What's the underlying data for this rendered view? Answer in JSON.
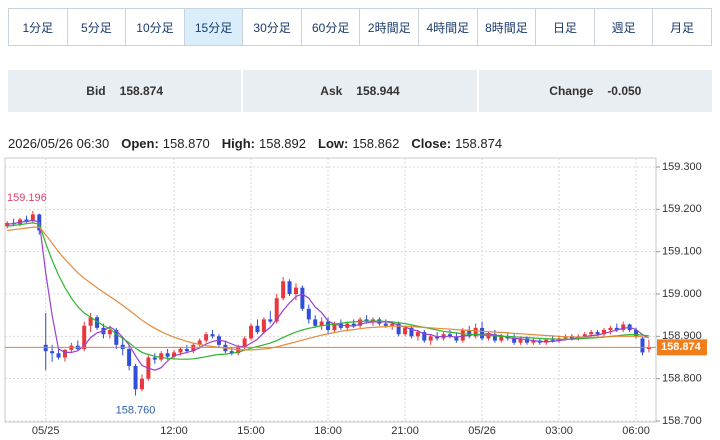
{
  "tabs": {
    "labels": [
      "1分足",
      "5分足",
      "10分足",
      "15分足",
      "30分足",
      "60分足",
      "2時間足",
      "4時間足",
      "8時間足",
      "日足",
      "週足",
      "月足"
    ],
    "selected": 3
  },
  "quote": [
    {
      "label": "Bid",
      "value": "158.874"
    },
    {
      "label": "Ask",
      "value": "158.944"
    },
    {
      "label": "Change",
      "value": "-0.050"
    }
  ],
  "info": {
    "time": "2026/05/26 06:30",
    "items": [
      {
        "label": "Open:",
        "value": "158.870"
      },
      {
        "label": "High:",
        "value": "158.892"
      },
      {
        "label": "Low:",
        "value": "158.862"
      },
      {
        "label": "Close:",
        "value": "158.874"
      }
    ]
  },
  "chart_data": {
    "type": "candlestick",
    "categories": [
      null,
      null,
      null,
      null,
      null,
      null,
      "05/25",
      null,
      null,
      null,
      null,
      null,
      null,
      null,
      null,
      null,
      null,
      null,
      null,
      null,
      null,
      null,
      null,
      null,
      null,
      null,
      "12:00",
      null,
      null,
      null,
      null,
      null,
      null,
      null,
      null,
      null,
      null,
      null,
      "15:00",
      null,
      null,
      null,
      null,
      null,
      null,
      null,
      null,
      null,
      null,
      null,
      "18:00",
      null,
      null,
      null,
      null,
      null,
      null,
      null,
      null,
      null,
      null,
      null,
      "21:00",
      null,
      null,
      null,
      null,
      null,
      null,
      null,
      null,
      null,
      null,
      null,
      "05/26",
      null,
      null,
      null,
      null,
      null,
      null,
      null,
      null,
      null,
      null,
      null,
      "03:00",
      null,
      null,
      null,
      null,
      null,
      null,
      null,
      null,
      null,
      null,
      null,
      "06:00",
      null,
      null
    ],
    "open": [
      159.16,
      159.168,
      159.165,
      159.176,
      159.172,
      159.188,
      158.88,
      158.865,
      158.86,
      158.85,
      158.868,
      158.878,
      158.87,
      158.925,
      158.945,
      158.92,
      158.905,
      158.915,
      158.88,
      158.87,
      158.83,
      158.775,
      158.8,
      158.85,
      158.845,
      158.86,
      158.852,
      158.862,
      158.87,
      158.865,
      158.88,
      158.89,
      158.905,
      158.9,
      158.88,
      158.865,
      158.86,
      158.875,
      158.895,
      158.925,
      158.91,
      158.94,
      158.935,
      158.99,
      159.03,
      159.0,
      159.015,
      158.965,
      158.94,
      158.925,
      158.935,
      158.915,
      158.93,
      158.92,
      158.93,
      158.925,
      158.94,
      158.935,
      158.94,
      158.93,
      158.925,
      158.93,
      158.905,
      158.92,
      158.9,
      158.91,
      158.89,
      158.9,
      158.895,
      158.905,
      158.9,
      158.89,
      158.915,
      158.9,
      158.92,
      158.895,
      158.905,
      158.89,
      158.9,
      158.895,
      158.885,
      158.895,
      158.885,
      158.89,
      158.885,
      158.892,
      158.89,
      158.895,
      158.9,
      158.895,
      158.9,
      158.905,
      158.91,
      158.905,
      158.915,
      158.92,
      158.915,
      158.928,
      158.915,
      158.895,
      158.87
    ],
    "high": [
      159.172,
      159.178,
      159.18,
      159.185,
      159.196,
      159.19,
      158.955,
      158.88,
      158.875,
      158.87,
      158.885,
      158.89,
      158.935,
      158.955,
      158.95,
      158.93,
      158.925,
      158.92,
      158.895,
      158.88,
      158.835,
      158.81,
      158.855,
      158.86,
      158.865,
      158.87,
      158.868,
      158.875,
      158.88,
      158.885,
      158.895,
      158.91,
      158.915,
      158.905,
      158.89,
      158.875,
      158.88,
      158.9,
      158.93,
      158.94,
      158.945,
      158.96,
      159.0,
      159.04,
      159.035,
      159.025,
      159.02,
      158.975,
      158.95,
      158.945,
      158.945,
      158.935,
      158.94,
      158.935,
      158.94,
      158.945,
      158.95,
      158.945,
      158.945,
      158.94,
      158.935,
      158.935,
      158.925,
      158.925,
      158.915,
      158.915,
      158.905,
      158.91,
      158.91,
      158.915,
      158.91,
      158.92,
      158.925,
      158.93,
      158.935,
      158.91,
      158.915,
      158.905,
      158.91,
      158.905,
      158.9,
      158.9,
      158.895,
      158.895,
      158.895,
      158.9,
      158.9,
      158.905,
      158.905,
      158.905,
      158.91,
      158.915,
      158.915,
      158.92,
      158.925,
      158.93,
      158.935,
      158.93,
      158.92,
      158.9,
      158.892
    ],
    "low": [
      159.155,
      159.16,
      159.16,
      159.168,
      159.168,
      159.14,
      158.82,
      158.84,
      158.845,
      158.84,
      158.86,
      158.865,
      158.865,
      158.91,
      158.915,
      158.895,
      158.895,
      158.87,
      158.855,
      158.82,
      158.76,
      158.77,
      158.795,
      158.835,
      158.84,
      158.845,
      158.845,
      158.855,
      158.86,
      158.86,
      158.875,
      158.885,
      158.895,
      158.875,
      158.86,
      158.855,
      158.855,
      158.87,
      158.89,
      158.905,
      158.905,
      158.93,
      158.93,
      158.985,
      158.995,
      158.985,
      158.96,
      158.93,
      158.92,
      158.915,
      158.905,
      158.91,
      158.915,
      158.915,
      158.92,
      158.92,
      158.93,
      158.925,
      158.925,
      158.92,
      158.915,
      158.9,
      158.9,
      158.895,
      158.89,
      158.885,
      158.88,
      158.89,
      158.89,
      158.895,
      158.885,
      158.885,
      158.895,
      158.895,
      158.89,
      158.89,
      158.885,
      158.885,
      158.89,
      158.88,
      158.88,
      158.88,
      158.88,
      158.88,
      158.88,
      158.885,
      158.885,
      158.89,
      158.89,
      158.89,
      158.895,
      158.895,
      158.9,
      158.9,
      158.905,
      158.91,
      158.91,
      158.91,
      158.895,
      158.855,
      158.862
    ],
    "close": [
      159.168,
      159.165,
      159.176,
      159.172,
      159.188,
      159.15,
      158.865,
      158.86,
      158.85,
      158.868,
      158.878,
      158.87,
      158.925,
      158.945,
      158.92,
      158.905,
      158.915,
      158.88,
      158.87,
      158.83,
      158.775,
      158.8,
      158.85,
      158.845,
      158.86,
      158.852,
      158.862,
      158.87,
      158.865,
      158.88,
      158.89,
      158.905,
      158.9,
      158.88,
      158.865,
      158.86,
      158.875,
      158.895,
      158.925,
      158.91,
      158.94,
      158.935,
      158.99,
      159.03,
      159.0,
      159.015,
      158.965,
      158.94,
      158.925,
      158.935,
      158.915,
      158.93,
      158.92,
      158.93,
      158.925,
      158.94,
      158.935,
      158.94,
      158.93,
      158.925,
      158.93,
      158.905,
      158.92,
      158.9,
      158.91,
      158.89,
      158.9,
      158.895,
      158.905,
      158.9,
      158.89,
      158.915,
      158.9,
      158.92,
      158.895,
      158.905,
      158.89,
      158.9,
      158.895,
      158.885,
      158.895,
      158.885,
      158.89,
      158.885,
      158.892,
      158.89,
      158.895,
      158.9,
      158.895,
      158.9,
      158.905,
      158.91,
      158.905,
      158.915,
      158.92,
      158.915,
      158.928,
      158.915,
      158.9,
      158.862,
      158.874
    ],
    "up_color": "#e8383d",
    "down_color": "#2f4fd8",
    "series": [
      {
        "color": "#9b3fd0",
        "values": [
          159.165,
          159.166,
          159.17,
          159.171,
          159.174,
          159.17,
          159.05,
          158.95,
          158.87,
          158.862,
          158.862,
          158.866,
          158.878,
          158.897,
          158.908,
          158.913,
          158.922,
          158.913,
          158.898,
          158.88,
          158.854,
          158.831,
          158.825,
          158.82,
          158.826,
          158.842,
          158.854,
          158.858,
          158.862,
          158.866,
          158.873,
          158.882,
          158.888,
          158.891,
          158.888,
          158.882,
          158.876,
          158.875,
          158.884,
          158.893,
          158.909,
          158.921,
          158.94,
          158.961,
          158.979,
          158.994,
          159.0,
          158.99,
          158.969,
          158.956,
          158.936,
          158.929,
          158.925,
          158.926,
          158.924,
          158.929,
          158.932,
          158.934,
          158.934,
          158.934,
          158.932,
          158.926,
          158.922,
          158.916,
          158.913,
          158.905,
          158.904,
          158.899,
          158.9,
          158.9,
          158.898,
          158.901,
          158.902,
          158.905,
          158.904,
          158.907,
          158.902,
          158.902,
          158.897,
          158.895,
          158.894,
          158.892,
          158.89,
          158.888,
          158.887,
          158.888,
          158.89,
          158.892,
          158.894,
          158.896,
          158.899,
          158.902,
          158.903,
          158.907,
          158.911,
          158.915,
          158.919,
          158.921,
          158.916,
          158.904,
          158.896
        ]
      },
      {
        "color": "#2fb52f",
        "values": [
          159.16,
          159.162,
          159.164,
          159.166,
          159.168,
          159.165,
          159.12,
          159.08,
          159.045,
          159.015,
          158.99,
          158.97,
          158.955,
          158.945,
          158.935,
          158.925,
          158.918,
          158.905,
          158.895,
          158.885,
          158.872,
          158.862,
          158.857,
          158.853,
          158.85,
          158.848,
          158.847,
          158.846,
          158.846,
          158.847,
          158.849,
          158.852,
          158.855,
          158.857,
          158.858,
          158.86,
          158.863,
          158.867,
          158.872,
          158.876,
          158.88,
          158.884,
          158.89,
          158.897,
          158.904,
          158.91,
          158.915,
          158.919,
          158.922,
          158.925,
          158.927,
          158.929,
          158.931,
          158.933,
          158.934,
          158.935,
          158.936,
          158.936,
          158.936,
          158.935,
          158.934,
          158.932,
          158.93,
          158.927,
          158.924,
          158.921,
          158.918,
          158.915,
          158.912,
          158.91,
          158.908,
          158.906,
          158.905,
          158.904,
          158.903,
          158.902,
          158.901,
          158.9,
          158.9,
          158.899,
          158.898,
          158.897,
          158.896,
          158.895,
          158.894,
          158.894,
          158.893,
          158.893,
          158.893,
          158.894,
          158.895,
          158.896,
          158.897,
          158.898,
          158.9,
          158.901,
          158.903,
          158.904,
          158.904,
          158.903,
          158.901
        ]
      },
      {
        "color": "#e48a3a",
        "values": [
          159.15,
          159.152,
          159.154,
          159.156,
          159.158,
          159.158,
          159.14,
          159.12,
          159.1,
          159.082,
          159.066,
          159.05,
          159.037,
          159.026,
          159.015,
          159.004,
          158.994,
          158.984,
          158.973,
          158.962,
          158.95,
          158.938,
          158.928,
          158.919,
          158.911,
          158.904,
          158.898,
          158.893,
          158.888,
          158.884,
          158.881,
          158.878,
          158.876,
          158.874,
          158.872,
          158.87,
          158.869,
          158.868,
          158.868,
          158.869,
          158.87,
          158.872,
          158.875,
          158.879,
          158.883,
          158.887,
          158.891,
          158.895,
          158.899,
          158.903,
          158.906,
          158.909,
          158.912,
          158.914,
          158.916,
          158.918,
          158.92,
          158.921,
          158.922,
          158.923,
          158.924,
          158.924,
          158.924,
          158.923,
          158.922,
          158.921,
          158.92,
          158.919,
          158.918,
          158.917,
          158.916,
          158.915,
          158.914,
          158.913,
          158.912,
          158.911,
          158.91,
          158.909,
          158.908,
          158.907,
          158.906,
          158.905,
          158.904,
          158.903,
          158.902,
          158.901,
          158.9,
          158.899,
          158.899,
          158.898,
          158.898,
          158.898,
          158.898,
          158.899,
          158.899,
          158.9,
          158.9,
          158.9,
          158.9,
          158.899,
          158.897
        ]
      }
    ],
    "max_label": "159.196",
    "max_label_color": "#e0436b",
    "min_label": "158.760",
    "min_label_color": "#2f5fa8",
    "last_price": 158.874,
    "last_price_color": "#f07f1b",
    "ylim": [
      158.7,
      159.3
    ],
    "yticks": [
      {
        "value": 158.7,
        "label": "158.700"
      },
      {
        "value": 158.8,
        "label": "158.800"
      },
      {
        "value": 158.9,
        "label": "158.900"
      },
      {
        "value": 159.0,
        "label": "159.000"
      },
      {
        "value": 159.1,
        "label": "159.100"
      },
      {
        "value": 159.2,
        "label": "159.200"
      },
      {
        "value": 159.3,
        "label": "159.300"
      }
    ],
    "grid": true
  }
}
